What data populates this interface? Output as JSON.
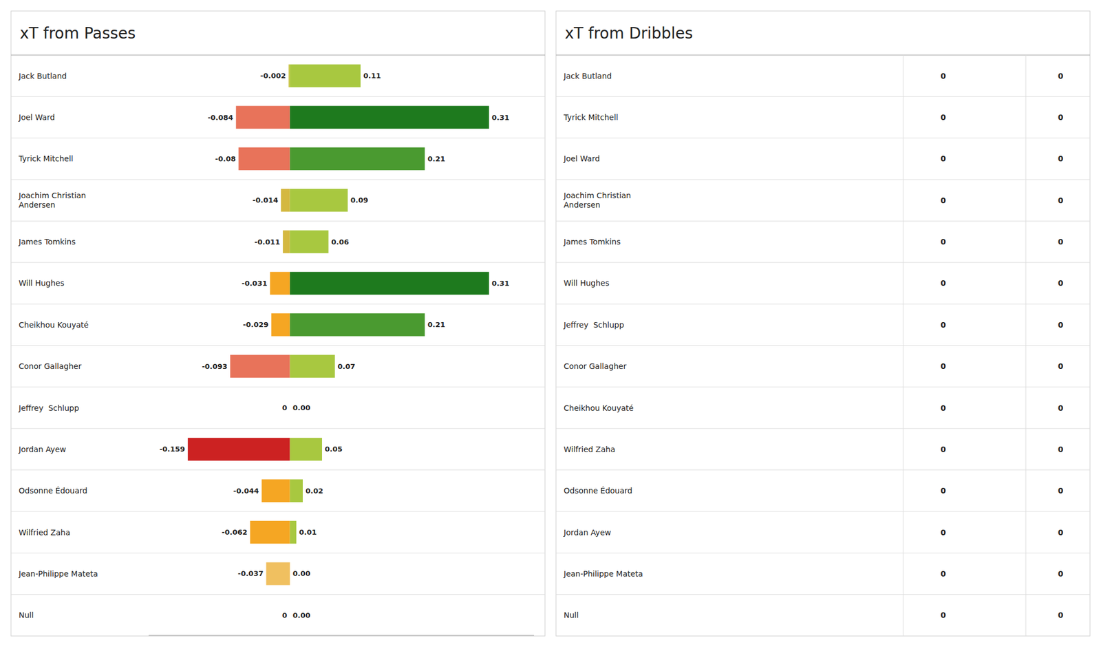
{
  "chart_data": [
    {
      "type": "bar",
      "orientation": "horizontal",
      "title": "xT from Passes",
      "categories": [
        "Jack Butland",
        "Joel Ward",
        "Tyrick Mitchell",
        "Joachim Christian\nAndersen",
        "James Tomkins",
        "Will Hughes",
        "Cheikhou Kouyaté",
        "Conor Gallagher",
        "Jeffrey  Schlupp",
        "Jordan Ayew",
        "Odsonne Édouard",
        "Wilfried Zaha",
        "Jean-Philippe Mateta",
        "Null"
      ],
      "series": [
        {
          "values": [
            -0.002,
            -0.084,
            -0.08,
            -0.014,
            -0.011,
            -0.031,
            -0.029,
            -0.093,
            0,
            -0.159,
            -0.044,
            -0.062,
            -0.037,
            0
          ],
          "value_labels": [
            "-0.002",
            "-0.084",
            "-0.08",
            "-0.014",
            "-0.011",
            "-0.031",
            "-0.029",
            "-0.093",
            "0",
            "-0.159",
            "-0.044",
            "-0.062",
            "-0.037",
            "0"
          ],
          "colors": [
            "#C8C040",
            "#E8735A",
            "#E8735A",
            "#D4B840",
            "#D4B840",
            "#F5A623",
            "#F5A623",
            "#E8735A",
            "#cccccc",
            "#CC2222",
            "#F5A623",
            "#F5A623",
            "#F0C060",
            "#cccccc"
          ]
        },
        {
          "values": [
            0.11,
            0.31,
            0.21,
            0.09,
            0.06,
            0.31,
            0.21,
            0.07,
            0.0,
            0.05,
            0.02,
            0.01,
            0.0,
            0.0
          ],
          "value_labels": [
            "0.11",
            "0.31",
            "0.21",
            "0.09",
            "0.06",
            "0.31",
            "0.21",
            "0.07",
            "0.00",
            "0.05",
            "0.02",
            "0.01",
            "0.00",
            "0.00"
          ],
          "colors": [
            "#A8C840",
            "#1E7A1E",
            "#4A9A30",
            "#A8C840",
            "#A8C840",
            "#1E7A1E",
            "#4A9A30",
            "#A8C840",
            "#cccccc",
            "#A8C840",
            "#A8C840",
            "#A8C840",
            "#cccccc",
            "#cccccc"
          ]
        }
      ],
      "xlim": [
        -0.22,
        0.38
      ],
      "data_labels": true,
      "tick_labels": "y",
      "grid": false
    },
    {
      "type": "table",
      "title": "xT from Dribbles",
      "categories": [
        "Jack Butland",
        "Tyrick Mitchell",
        "Joel Ward",
        "Joachim Christian\nAndersen",
        "James Tomkins",
        "Will Hughes",
        "Jeffrey  Schlupp",
        "Conor Gallagher",
        "Cheikhou Kouyaté",
        "Wilfried Zaha",
        "Odsonne Édouard",
        "Jordan Ayew",
        "Jean-Philippe Mateta",
        "Null"
      ],
      "series": [
        {
          "values": [
            0,
            0,
            0,
            0,
            0,
            0,
            0,
            0,
            0,
            0,
            0,
            0,
            0,
            0
          ]
        },
        {
          "values": [
            0,
            0,
            0,
            0,
            0,
            0,
            0,
            0,
            0,
            0,
            0,
            0,
            0,
            0
          ]
        }
      ]
    }
  ]
}
